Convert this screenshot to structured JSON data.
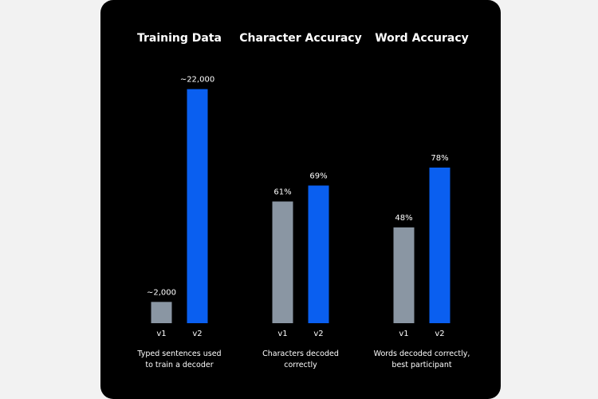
{
  "colors": {
    "background": "#000000",
    "v1_bar": "#8a96a3",
    "v2_bar": "#0a5ff0",
    "text": "#ffffff"
  },
  "chart_data": [
    {
      "type": "bar",
      "title": "Training Data",
      "categories": [
        "v1",
        "v2"
      ],
      "values": [
        2000,
        22000
      ],
      "value_labels": [
        "~2,000",
        "~22,000"
      ],
      "caption": [
        "Typed sentences used",
        "to train a decoder"
      ],
      "ylim": [
        0,
        24000
      ]
    },
    {
      "type": "bar",
      "title": "Character Accuracy",
      "categories": [
        "v1",
        "v2"
      ],
      "values": [
        61,
        69
      ],
      "value_labels": [
        "61%",
        "69%"
      ],
      "caption": [
        "Characters decoded",
        "correctly"
      ],
      "ylim": [
        0,
        110
      ]
    },
    {
      "type": "bar",
      "title": "Word Accuracy",
      "categories": [
        "v1",
        "v2"
      ],
      "values": [
        48,
        78
      ],
      "value_labels": [
        "48%",
        "78%"
      ],
      "caption": [
        "Words decoded correctly,",
        "best participant"
      ],
      "ylim": [
        0,
        110
      ]
    }
  ]
}
